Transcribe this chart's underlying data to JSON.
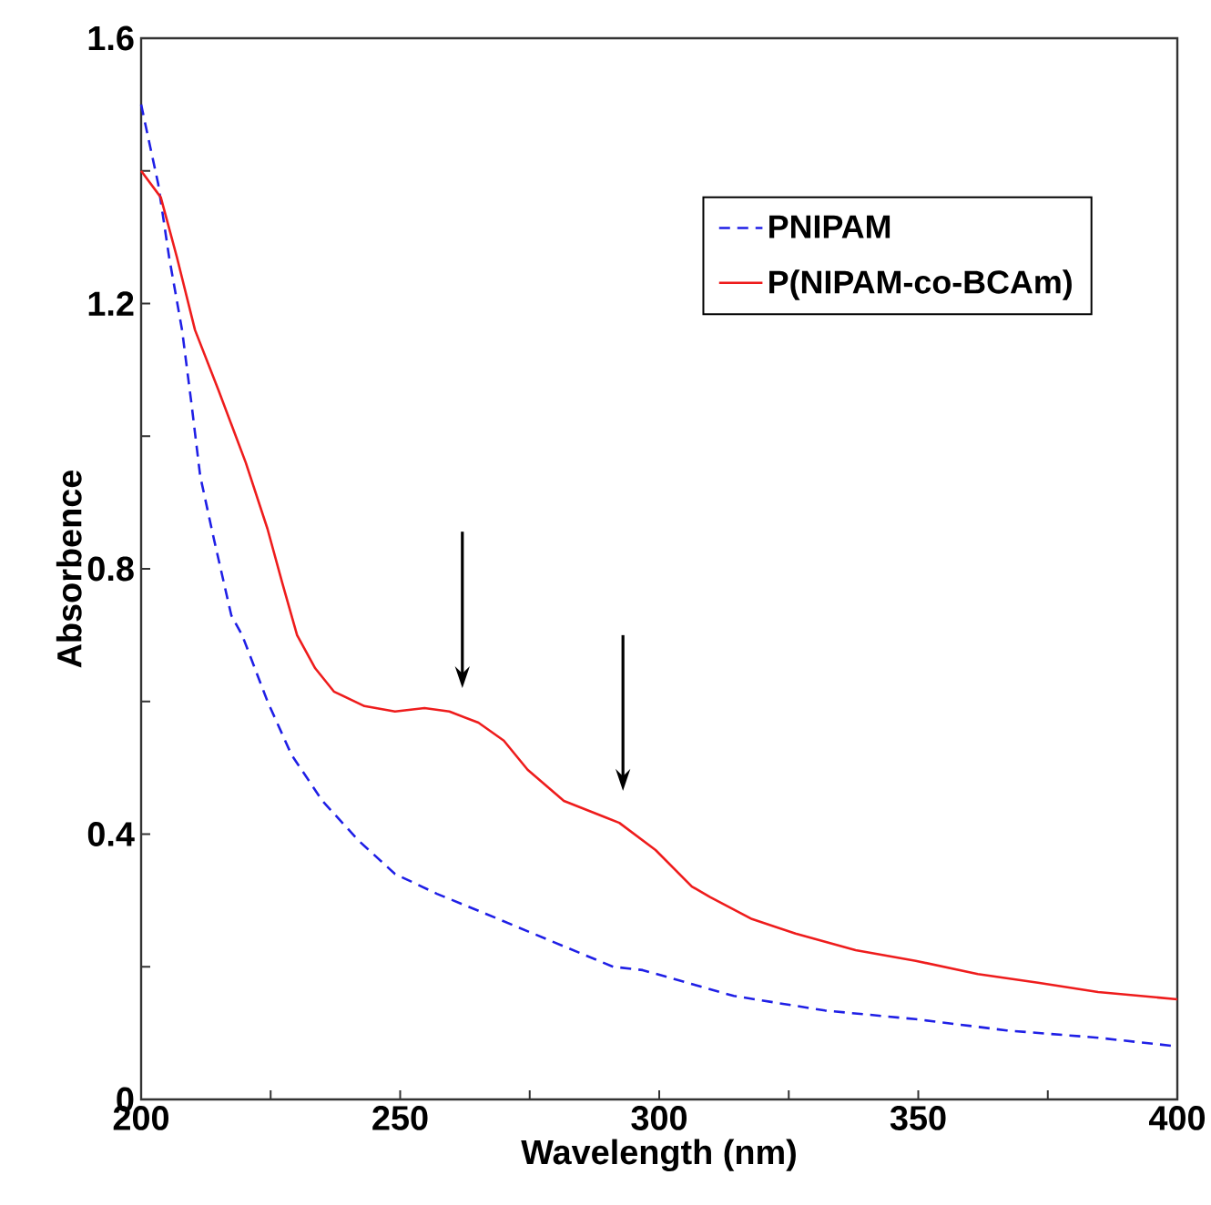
{
  "chart_data": {
    "type": "line",
    "xlabel": "Wavelength (nm)",
    "ylabel": "Absorbence",
    "xlim": [
      200,
      400
    ],
    "ylim": [
      0,
      1.6
    ],
    "xticks": [
      200,
      250,
      300,
      350,
      400
    ],
    "yticks": [
      {
        "value": 0,
        "label": "0"
      },
      0.4,
      0.8,
      1.2,
      1.6
    ],
    "legend": "top right",
    "grid": false,
    "marker": "none",
    "series": [
      {
        "name": "PNIPAM",
        "color": "#1f1fe6",
        "line_style": "dashed",
        "x": [
          200,
          203.3,
          205.4,
          207.9,
          209.7,
          211.4,
          213.9,
          217.4,
          219.5,
          224.4,
          229.0,
          235.0,
          242.0,
          249.0,
          257.1,
          266.5,
          275.7,
          291.1,
          296.8,
          314.4,
          332.0,
          349.5,
          367.1,
          384.7,
          400
        ],
        "values": [
          1.5,
          1.38,
          1.27,
          1.16,
          1.05,
          0.94,
          0.85,
          0.73,
          0.7,
          0.6,
          0.52,
          0.45,
          0.39,
          0.34,
          0.31,
          0.28,
          0.25,
          0.2,
          0.195,
          0.156,
          0.134,
          0.121,
          0.104,
          0.093,
          0.08
        ]
      },
      {
        "name": "P(NIPAM-co-BCAm)",
        "color": "#ee1c1c",
        "line_style": "solid",
        "x": [
          200,
          203.8,
          206.9,
          210.4,
          214.9,
          220.2,
          224.4,
          227.2,
          230.1,
          233.6,
          237.2,
          243.1,
          249.0,
          254.7,
          259.5,
          265.1,
          270.0,
          274.6,
          281.6,
          289.7,
          292.3,
          299.3,
          306.3,
          309.8,
          317.9,
          326.3,
          337.9,
          349.5,
          361.5,
          373.1,
          384.7,
          400
        ],
        "values": [
          1.4,
          1.36,
          1.27,
          1.16,
          1.07,
          0.96,
          0.86,
          0.78,
          0.7,
          0.65,
          0.615,
          0.593,
          0.585,
          0.59,
          0.585,
          0.568,
          0.541,
          0.497,
          0.45,
          0.425,
          0.417,
          0.376,
          0.321,
          0.305,
          0.272,
          0.25,
          0.225,
          0.209,
          0.189,
          0.176,
          0.162,
          0.151
        ]
      }
    ]
  }
}
